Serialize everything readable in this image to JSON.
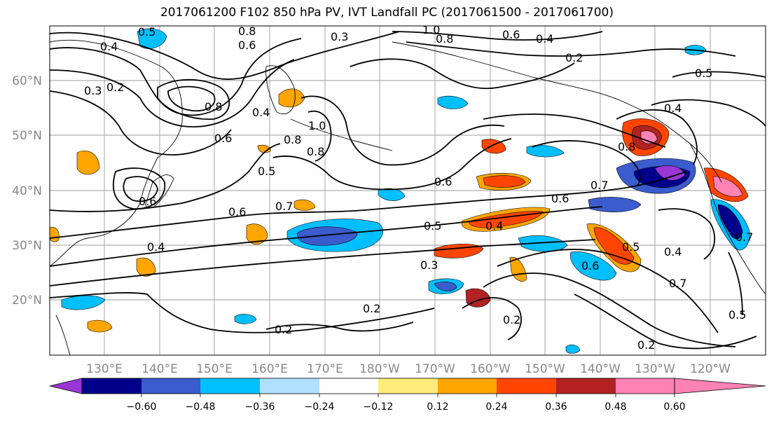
{
  "title": "2017061200 F102 850 hPa PV, IVT Landfall PC (2017061500 - 2017061700)",
  "map": {
    "lon_ticks": [
      "130°E",
      "140°E",
      "150°E",
      "160°E",
      "170°E",
      "180°W",
      "170°W",
      "160°W",
      "150°W",
      "140°W",
      "130°W",
      "120°W"
    ],
    "lat_ticks": [
      "60°N",
      "50°N",
      "40°N",
      "30°N",
      "20°N"
    ],
    "contour_labels": [
      "0.5",
      "0.8",
      "0.6",
      "0.3",
      "1.0",
      "0.8",
      "0.6",
      "0.4",
      "0.2",
      "0.5",
      "0.4",
      "0.3",
      "0.2",
      "0.8",
      "0.4",
      "0.6",
      "1.0",
      "0.8",
      "0.5",
      "0.6",
      "0.7",
      "0.6",
      "0.5",
      "0.4",
      "0.6",
      "0.7",
      "0.8",
      "0.4",
      "0.6",
      "0.3",
      "0.5",
      "0.6",
      "0.4",
      "0.2",
      "0.2",
      "0.2",
      "0.7",
      "0.5",
      "0.2",
      "0.4",
      "0.7",
      "0.8"
    ]
  },
  "colorbar": {
    "colors": [
      "#9b35d6",
      "#00008b",
      "#3a5ccc",
      "#00bfff",
      "#b0e0ff",
      "#ffffff",
      "#ffeb7a",
      "#ffa500",
      "#ff4500",
      "#b22222",
      "#ff82b4"
    ],
    "labels": [
      "−0.60",
      "−0.48",
      "−0.36",
      "−0.24",
      "−0.12",
      "0.12",
      "0.24",
      "0.36",
      "0.48",
      "0.60"
    ]
  }
}
